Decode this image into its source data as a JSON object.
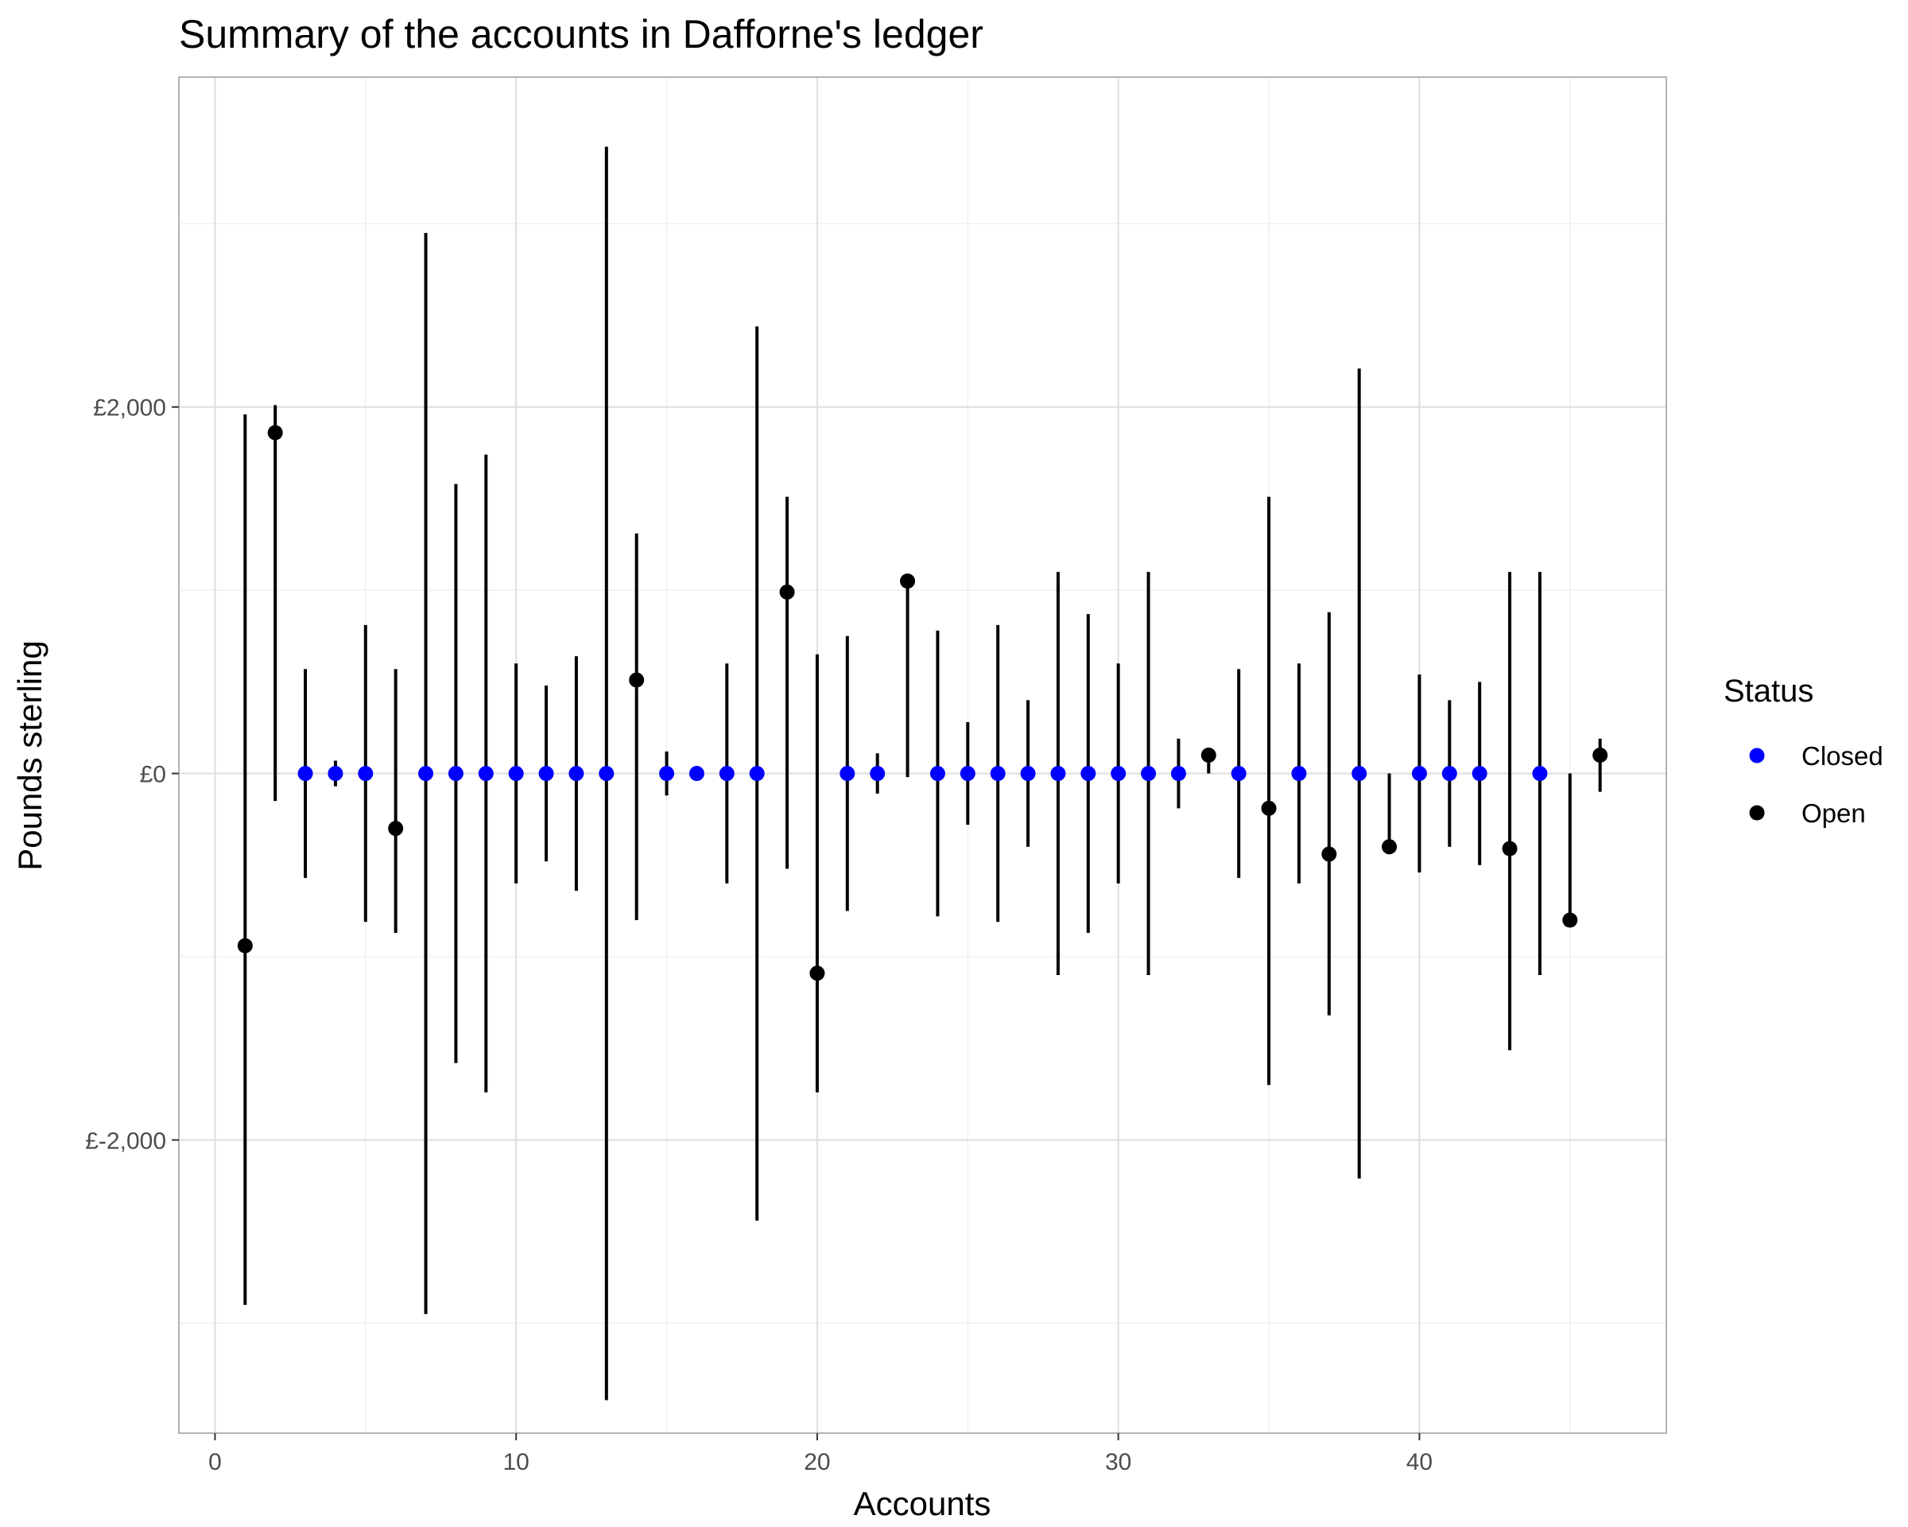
{
  "chart_data": {
    "type": "scatter",
    "title": "Summary of the accounts in Dafforne's ledger",
    "xlabel": "Accounts",
    "ylabel": "Pounds sterling",
    "xlim": [
      -1.2,
      48.2
    ],
    "ylim": [
      -3600,
      3800
    ],
    "x_ticks": [
      0,
      10,
      20,
      30,
      40
    ],
    "x_tick_labels": [
      "0",
      "10",
      "20",
      "30",
      "40"
    ],
    "y_ticks": [
      -2000,
      0,
      2000
    ],
    "y_tick_labels": [
      "£-2,000",
      "£0",
      "£2,000"
    ],
    "grid": true,
    "legend": {
      "title": "Status",
      "position": "right",
      "entries": [
        {
          "label": "Closed",
          "color": "#0000ff"
        },
        {
          "label": "Open",
          "color": "#000000"
        }
      ]
    },
    "colors": {
      "Closed": "#0000ff",
      "Open": "#000000",
      "errorbar": "#000000"
    },
    "points": [
      {
        "x": 1,
        "y": -940,
        "ymin": -2900,
        "ymax": 1960,
        "status": "Open"
      },
      {
        "x": 2,
        "y": 1860,
        "ymin": -150,
        "ymax": 2010,
        "status": "Open"
      },
      {
        "x": 3,
        "y": 0,
        "ymin": -570,
        "ymax": 570,
        "status": "Closed"
      },
      {
        "x": 4,
        "y": 0,
        "ymin": -70,
        "ymax": 70,
        "status": "Closed"
      },
      {
        "x": 5,
        "y": 0,
        "ymin": -810,
        "ymax": 810,
        "status": "Closed"
      },
      {
        "x": 6,
        "y": -300,
        "ymin": -870,
        "ymax": 570,
        "status": "Open"
      },
      {
        "x": 7,
        "y": 0,
        "ymin": -2950,
        "ymax": 2950,
        "status": "Closed"
      },
      {
        "x": 8,
        "y": 0,
        "ymin": -1580,
        "ymax": 1580,
        "status": "Closed"
      },
      {
        "x": 9,
        "y": 0,
        "ymin": -1740,
        "ymax": 1740,
        "status": "Closed"
      },
      {
        "x": 10,
        "y": 0,
        "ymin": -600,
        "ymax": 600,
        "status": "Closed"
      },
      {
        "x": 11,
        "y": 0,
        "ymin": -480,
        "ymax": 480,
        "status": "Closed"
      },
      {
        "x": 12,
        "y": 0,
        "ymin": -640,
        "ymax": 640,
        "status": "Closed"
      },
      {
        "x": 13,
        "y": 0,
        "ymin": -3420,
        "ymax": 3420,
        "status": "Closed"
      },
      {
        "x": 14,
        "y": 510,
        "ymin": -800,
        "ymax": 1310,
        "status": "Open"
      },
      {
        "x": 15,
        "y": 0,
        "ymin": -120,
        "ymax": 120,
        "status": "Closed"
      },
      {
        "x": 16,
        "y": 0,
        "ymin": 0,
        "ymax": 0,
        "status": "Closed"
      },
      {
        "x": 17,
        "y": 0,
        "ymin": -600,
        "ymax": 600,
        "status": "Closed"
      },
      {
        "x": 18,
        "y": 0,
        "ymin": -2440,
        "ymax": 2440,
        "status": "Closed"
      },
      {
        "x": 19,
        "y": 990,
        "ymin": -520,
        "ymax": 1510,
        "status": "Open"
      },
      {
        "x": 20,
        "y": -1090,
        "ymin": -1740,
        "ymax": 650,
        "status": "Open"
      },
      {
        "x": 21,
        "y": 0,
        "ymin": -750,
        "ymax": 750,
        "status": "Closed"
      },
      {
        "x": 22,
        "y": 0,
        "ymin": -110,
        "ymax": 110,
        "status": "Closed"
      },
      {
        "x": 23,
        "y": 1050,
        "ymin": -20,
        "ymax": 1070,
        "status": "Open"
      },
      {
        "x": 24,
        "y": 0,
        "ymin": -780,
        "ymax": 780,
        "status": "Closed"
      },
      {
        "x": 25,
        "y": 0,
        "ymin": -280,
        "ymax": 280,
        "status": "Closed"
      },
      {
        "x": 26,
        "y": 0,
        "ymin": -810,
        "ymax": 810,
        "status": "Closed"
      },
      {
        "x": 27,
        "y": 0,
        "ymin": -400,
        "ymax": 400,
        "status": "Closed"
      },
      {
        "x": 28,
        "y": 0,
        "ymin": -1100,
        "ymax": 1100,
        "status": "Closed"
      },
      {
        "x": 29,
        "y": 0,
        "ymin": -870,
        "ymax": 870,
        "status": "Closed"
      },
      {
        "x": 30,
        "y": 0,
        "ymin": -600,
        "ymax": 600,
        "status": "Closed"
      },
      {
        "x": 31,
        "y": 0,
        "ymin": -1100,
        "ymax": 1100,
        "status": "Closed"
      },
      {
        "x": 32,
        "y": 0,
        "ymin": -190,
        "ymax": 190,
        "status": "Closed"
      },
      {
        "x": 33,
        "y": 100,
        "ymin": 0,
        "ymax": 100,
        "status": "Open"
      },
      {
        "x": 34,
        "y": 0,
        "ymin": -570,
        "ymax": 570,
        "status": "Closed"
      },
      {
        "x": 35,
        "y": -190,
        "ymin": -1700,
        "ymax": 1510,
        "status": "Open"
      },
      {
        "x": 36,
        "y": 0,
        "ymin": -600,
        "ymax": 600,
        "status": "Closed"
      },
      {
        "x": 37,
        "y": -440,
        "ymin": -1320,
        "ymax": 880,
        "status": "Open"
      },
      {
        "x": 38,
        "y": 0,
        "ymin": -2210,
        "ymax": 2210,
        "status": "Closed"
      },
      {
        "x": 39,
        "y": -400,
        "ymin": -400,
        "ymax": 0,
        "status": "Open"
      },
      {
        "x": 40,
        "y": 0,
        "ymin": -540,
        "ymax": 540,
        "status": "Closed"
      },
      {
        "x": 41,
        "y": 0,
        "ymin": -400,
        "ymax": 400,
        "status": "Closed"
      },
      {
        "x": 42,
        "y": 0,
        "ymin": -500,
        "ymax": 500,
        "status": "Closed"
      },
      {
        "x": 43,
        "y": -410,
        "ymin": -1510,
        "ymax": 1100,
        "status": "Open"
      },
      {
        "x": 44,
        "y": 0,
        "ymin": -1100,
        "ymax": 1100,
        "status": "Closed"
      },
      {
        "x": 45,
        "y": -800,
        "ymin": -800,
        "ymax": 0,
        "status": "Open"
      },
      {
        "x": 46,
        "y": 100,
        "ymin": -100,
        "ymax": 190,
        "status": "Open"
      }
    ]
  }
}
